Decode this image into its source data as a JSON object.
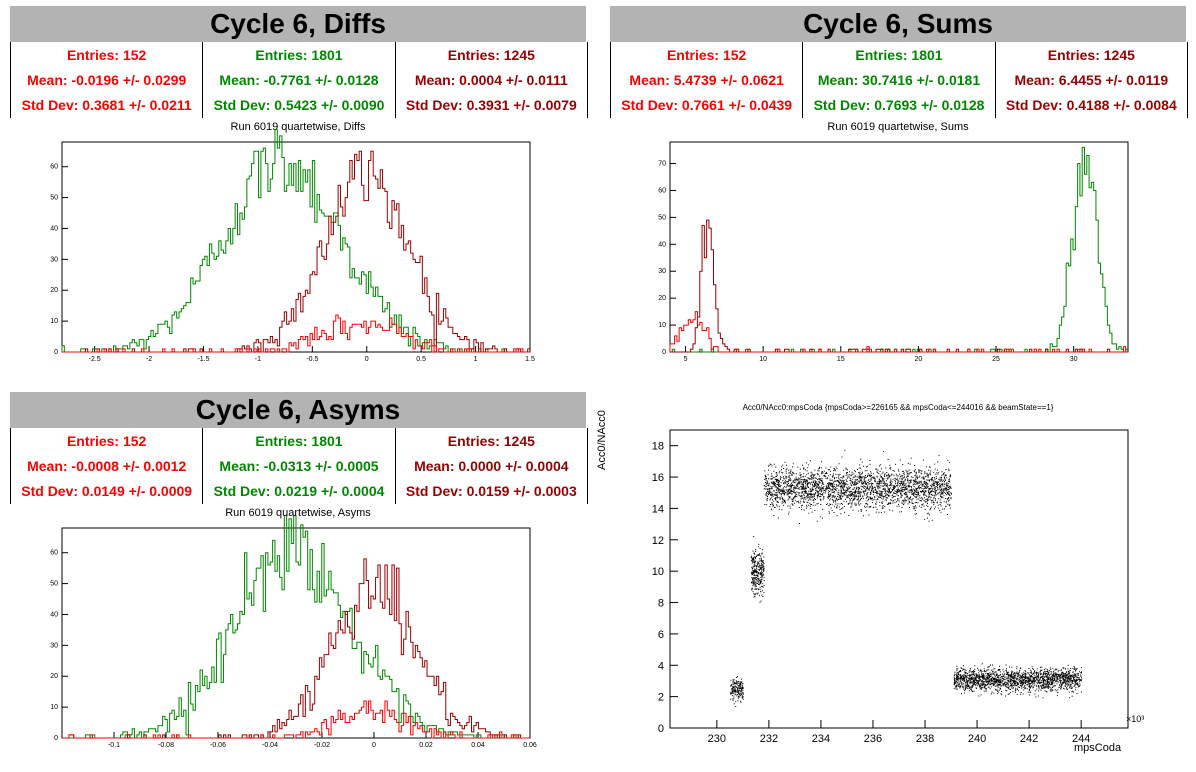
{
  "panels": {
    "diffs": {
      "title": "Cycle 6, Diffs",
      "subtitle": "Run 6019 quartetwise, Diffs",
      "stats": [
        {
          "entries": "Entries: 152",
          "mean": "Mean: -0.0196 +/- 0.0299",
          "std": "Std Dev: 0.3681 +/- 0.0211",
          "color": "#ff0000"
        },
        {
          "entries": "Entries: 1801",
          "mean": "Mean: -0.7761 +/- 0.0128",
          "std": "Std Dev: 0.5423 +/- 0.0090",
          "color": "#008800"
        },
        {
          "entries": "Entries: 1245",
          "mean": "Mean: 0.0004 +/- 0.0111",
          "std": "Std Dev: 0.3931 +/- 0.0079",
          "color": "#990000"
        }
      ]
    },
    "sums": {
      "title": "Cycle 6, Sums",
      "subtitle": "Run 6019 quartetwise, Sums",
      "stats": [
        {
          "entries": "Entries: 152",
          "mean": "Mean: 5.4739 +/- 0.0621",
          "std": "Std Dev: 0.7661 +/- 0.0439",
          "color": "#ff0000"
        },
        {
          "entries": "Entries: 1801",
          "mean": "Mean: 30.7416 +/- 0.0181",
          "std": "Std Dev: 0.7693 +/- 0.0128",
          "color": "#008800"
        },
        {
          "entries": "Entries: 1245",
          "mean": "Mean: 6.4455 +/- 0.0119",
          "std": "Std Dev: 0.4188 +/- 0.0084",
          "color": "#990000"
        }
      ]
    },
    "asyms": {
      "title": "Cycle 6, Asyms",
      "subtitle": "Run 6019 quartetwise, Asyms",
      "stats": [
        {
          "entries": "Entries: 152",
          "mean": "Mean: -0.0008 +/- 0.0012",
          "std": "Std Dev: 0.0149 +/- 0.0009",
          "color": "#ff0000"
        },
        {
          "entries": "Entries: 1801",
          "mean": "Mean: -0.0313 +/- 0.0005",
          "std": "Std Dev: 0.0219 +/- 0.0004",
          "color": "#008800"
        },
        {
          "entries": "Entries: 1245",
          "mean": "Mean: 0.0000 +/- 0.0004",
          "std": "Std Dev: 0.0159 +/- 0.0003",
          "color": "#990000"
        }
      ]
    },
    "scatter": {
      "title": "Acc0/NAcc0:mpsCoda {mpsCoda>=226165 && mpsCoda<=244016 && beamState==1}",
      "xlabel": "mpsCoda",
      "ylabel": "Acc0/NAcc0",
      "xexp": "×10³"
    }
  },
  "chart_data": [
    {
      "type": "histogram",
      "title": "Run 6019 quartetwise, Diffs",
      "xlim": [
        -2.8,
        1.5
      ],
      "ylim": [
        0,
        68
      ],
      "xticks": [
        -2.5,
        -2,
        -1.5,
        -1,
        -0.5,
        0,
        0.5,
        1,
        1.5
      ],
      "xticklabels": [
        "-2.5",
        "-2",
        "-1.5",
        "-1",
        "-0.5",
        "0",
        "0.5",
        "1",
        "1.5"
      ],
      "yticks": [
        0,
        10,
        20,
        30,
        40,
        50,
        60
      ],
      "series": [
        {
          "color": "#008800",
          "mean": -0.7761,
          "std": 0.5423,
          "peak": 62,
          "n": 1801
        },
        {
          "color": "#990000",
          "mean": 0.0004,
          "std": 0.3931,
          "peak": 57,
          "n": 1245
        },
        {
          "color": "#ff0000",
          "mean": -0.0196,
          "std": 0.3681,
          "peak": 9,
          "n": 152
        }
      ]
    },
    {
      "type": "histogram",
      "title": "Run 6019 quartetwise, Sums",
      "xlim": [
        4,
        33.5
      ],
      "ylim": [
        0,
        78
      ],
      "xticks": [
        5,
        10,
        15,
        20,
        25,
        30
      ],
      "xticklabels": [
        "5",
        "10",
        "15",
        "20",
        "25",
        "30"
      ],
      "yticks": [
        0,
        10,
        20,
        30,
        40,
        50,
        60,
        70
      ],
      "series": [
        {
          "color": "#008800",
          "mean": 30.7416,
          "std": 0.7693,
          "peak": 72,
          "n": 1801
        },
        {
          "color": "#990000",
          "mean": 6.4455,
          "std": 0.4188,
          "peak": 44,
          "n": 1245
        },
        {
          "color": "#ff0000",
          "mean": 5.4739,
          "std": 0.7661,
          "peak": 12,
          "n": 152
        }
      ]
    },
    {
      "type": "histogram",
      "title": "Run 6019 quartetwise, Asyms",
      "xlim": [
        -0.12,
        0.06
      ],
      "ylim": [
        0,
        68
      ],
      "xticks": [
        -0.1,
        -0.08,
        -0.06,
        -0.04,
        -0.02,
        0,
        0.02,
        0.04,
        0.06
      ],
      "xticklabels": [
        "-0.1",
        "-0.08",
        "-0.06",
        "-0.04",
        "-0.02",
        "0",
        "0.02",
        "0.04",
        "0.06"
      ],
      "yticks": [
        0,
        10,
        20,
        30,
        40,
        50,
        60
      ],
      "series": [
        {
          "color": "#008800",
          "mean": -0.0313,
          "std": 0.0219,
          "peak": 62,
          "n": 1801
        },
        {
          "color": "#990000",
          "mean": 0.0,
          "std": 0.0159,
          "peak": 50,
          "n": 1245
        },
        {
          "color": "#ff0000",
          "mean": -0.0008,
          "std": 0.0149,
          "peak": 8,
          "n": 152
        }
      ]
    },
    {
      "type": "scatter",
      "title": "Acc0/NAcc0:mpsCoda {mpsCoda>=226165 && mpsCoda<=244016 && beamState==1}",
      "xlabel": "mpsCoda",
      "ylabel": "Acc0/NAcc0",
      "xlim": [
        228.2,
        245.8
      ],
      "ylim": [
        0,
        19
      ],
      "xticks": [
        230,
        232,
        234,
        236,
        238,
        240,
        242,
        244
      ],
      "yticks": [
        0,
        2,
        4,
        6,
        8,
        10,
        12,
        14,
        16,
        18
      ],
      "clusters": [
        {
          "x": [
            230.5,
            231.0
          ],
          "ymean": 2.5,
          "ysd": 0.35,
          "n": 180
        },
        {
          "x": [
            231.3,
            231.8
          ],
          "ymean": 10.0,
          "ysd": 0.7,
          "n": 300
        },
        {
          "x": [
            231.8,
            239.0
          ],
          "ymean": 15.3,
          "ysd": 0.65,
          "n": 2600
        },
        {
          "x": [
            239.1,
            244.0
          ],
          "ymean": 3.1,
          "ysd": 0.35,
          "n": 1800
        }
      ]
    }
  ]
}
